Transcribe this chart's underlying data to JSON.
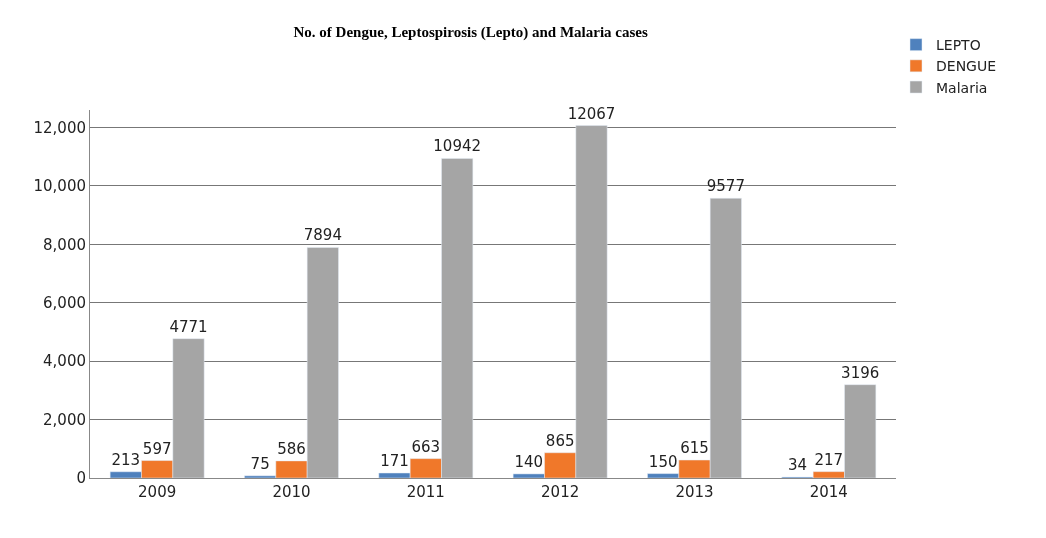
{
  "chart_data": {
    "type": "bar",
    "title": "No. of Dengue, Leptospirosis (Lepto) and Malaria cases",
    "categories": [
      "2009",
      "2010",
      "2011",
      "2012",
      "2013",
      "2014"
    ],
    "series": [
      {
        "name": "LEPTO",
        "color": "#4f81bd",
        "values": [
          213,
          75,
          171,
          140,
          150,
          34
        ]
      },
      {
        "name": "DENGUE",
        "color": "#f0782a",
        "values": [
          597,
          586,
          663,
          865,
          615,
          217
        ]
      },
      {
        "name": "Malaria",
        "color": "#a5a5a5",
        "values": [
          4771,
          7894,
          10942,
          12067,
          9577,
          3196
        ]
      }
    ],
    "ylim": [
      0,
      12600
    ],
    "yticks": [
      0,
      {
        "value": 2000,
        "label": "2,000"
      },
      {
        "value": 4000,
        "label": "4,000"
      },
      {
        "value": 6000,
        "label": "6,000"
      },
      {
        "value": 8000,
        "label": "8,000"
      },
      {
        "value": 10000,
        "label": "10,000"
      },
      {
        "value": 12000,
        "label": "12,000"
      }
    ],
    "grid": "y",
    "legend": "top right",
    "data_labels": true
  }
}
